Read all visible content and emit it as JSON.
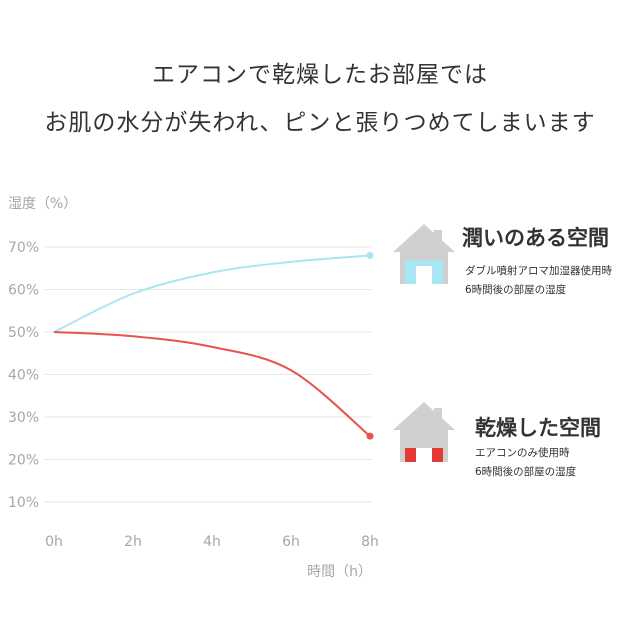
{
  "headline": {
    "line1": "エアコンで乾燥したお部屋では",
    "line2": "お肌の水分が失われ、ピンと張りつめてしまいます"
  },
  "legend": {
    "wet": {
      "title": "潤いのある空間",
      "desc1": "ダブル噴射アロマ加湿器使用時",
      "desc2": "6時間後の部屋の湿度",
      "icon": "house-icon",
      "color": "#a9e6f2"
    },
    "dry": {
      "title": "乾燥した空間",
      "desc1": "エアコンのみ使用時",
      "desc2": "6時間後の部屋の湿度",
      "icon": "house-icon",
      "color": "#e53935"
    }
  },
  "chart_data": {
    "type": "line",
    "title": "",
    "ylabel": "湿度（%）",
    "xlabel": "時間（h）",
    "x": [
      0,
      2,
      4,
      6,
      8
    ],
    "x_tick_labels": [
      "0h",
      "2h",
      "4h",
      "6h",
      "8h"
    ],
    "y_ticks": [
      10,
      20,
      30,
      40,
      50,
      60,
      70
    ],
    "y_tick_labels": [
      "10%",
      "20%",
      "30%",
      "40%",
      "50%",
      "60%",
      "70%"
    ],
    "xlim": [
      0,
      8
    ],
    "ylim": [
      10,
      70
    ],
    "grid": true,
    "series": [
      {
        "name": "潤いのある空間",
        "color": "#a9e6f2",
        "x": [
          0,
          2,
          4,
          6,
          8
        ],
        "values": [
          50,
          59,
          64,
          66.5,
          68
        ]
      },
      {
        "name": "乾燥した空間",
        "color": "#e8524f",
        "x": [
          0,
          2,
          4,
          6,
          8
        ],
        "values": [
          50,
          49,
          46.5,
          41,
          25.5
        ]
      }
    ]
  }
}
